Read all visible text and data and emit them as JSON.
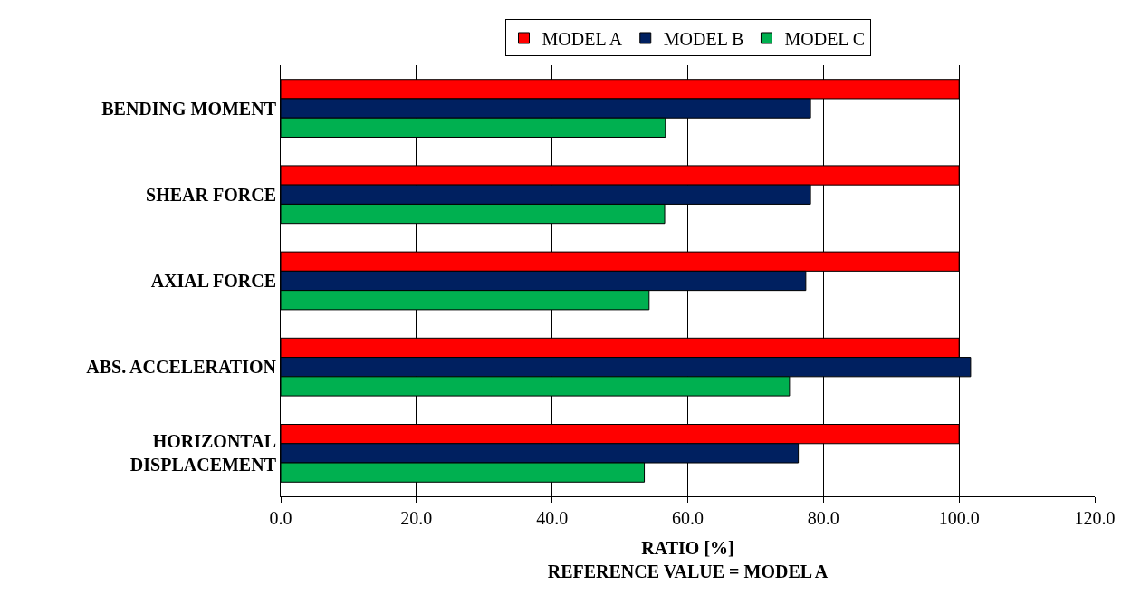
{
  "chart_data": {
    "type": "bar",
    "orientation": "horizontal",
    "xlabel": "RATIO [%]\nREFERENCE VALUE = MODEL A",
    "categories": [
      "BENDING MOMENT",
      "SHEAR FORCE",
      "AXIAL FORCE",
      "ABS. ACCELERATION",
      "HORIZONTAL\nDISPLACEMENT"
    ],
    "series": [
      {
        "name": "MODEL A",
        "color": "#ff0000",
        "values": [
          100,
          100,
          100,
          100,
          100
        ]
      },
      {
        "name": "MODEL B",
        "color": "#002060",
        "values": [
          78.1,
          78.1,
          77.4,
          101.7,
          76.3
        ]
      },
      {
        "name": "MODEL C",
        "color": "#00b050",
        "values": [
          56.7,
          56.6,
          54.3,
          75.0,
          53.6
        ]
      }
    ],
    "xlim": [
      0,
      120
    ],
    "xticks": [
      {
        "value": 0,
        "label": "0.0"
      },
      {
        "value": 20,
        "label": "20.0"
      },
      {
        "value": 40,
        "label": "40.0"
      },
      {
        "value": 60,
        "label": "60.0"
      },
      {
        "value": 80,
        "label": "80.0"
      },
      {
        "value": 100,
        "label": "100.0"
      },
      {
        "value": 120,
        "label": "120.0"
      }
    ],
    "grid": "x",
    "legend": "top"
  }
}
